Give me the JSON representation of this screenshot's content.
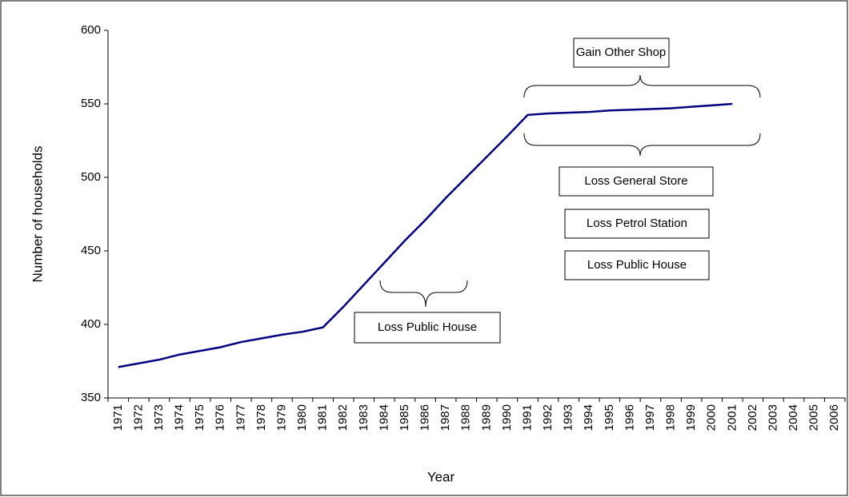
{
  "chart_data": {
    "type": "line",
    "x_label": "Year",
    "y_label": "Number of households",
    "categories": [
      "1971",
      "1972",
      "1973",
      "1974",
      "1975",
      "1976",
      "1977",
      "1978",
      "1979",
      "1980",
      "1981",
      "1982",
      "1983",
      "1984",
      "1985",
      "1986",
      "1987",
      "1988",
      "1989",
      "1990",
      "1991",
      "1992",
      "1993",
      "1994",
      "1995",
      "1996",
      "1997",
      "1998",
      "1999",
      "2000",
      "2001",
      "2002",
      "2003",
      "2004",
      "2005",
      "2006"
    ],
    "values": [
      371,
      373.5,
      376,
      379.5,
      382,
      384.5,
      388,
      390.5,
      393,
      395,
      398,
      412,
      427,
      442,
      457,
      471,
      486,
      500,
      514,
      528,
      542.5,
      543.5,
      544,
      544.5,
      545.5,
      546,
      546.5,
      547,
      548,
      549,
      550,
      null,
      null,
      null,
      null,
      null
    ],
    "color": "#000080",
    "ylim": [
      350,
      600
    ],
    "yticks": [
      350,
      400,
      450,
      500,
      550,
      600
    ],
    "grid": false,
    "annotations": [
      "Gain Other Shop",
      "Loss General Store",
      "Loss Petrol Station",
      "Loss Public House",
      "Loss Public House"
    ]
  }
}
